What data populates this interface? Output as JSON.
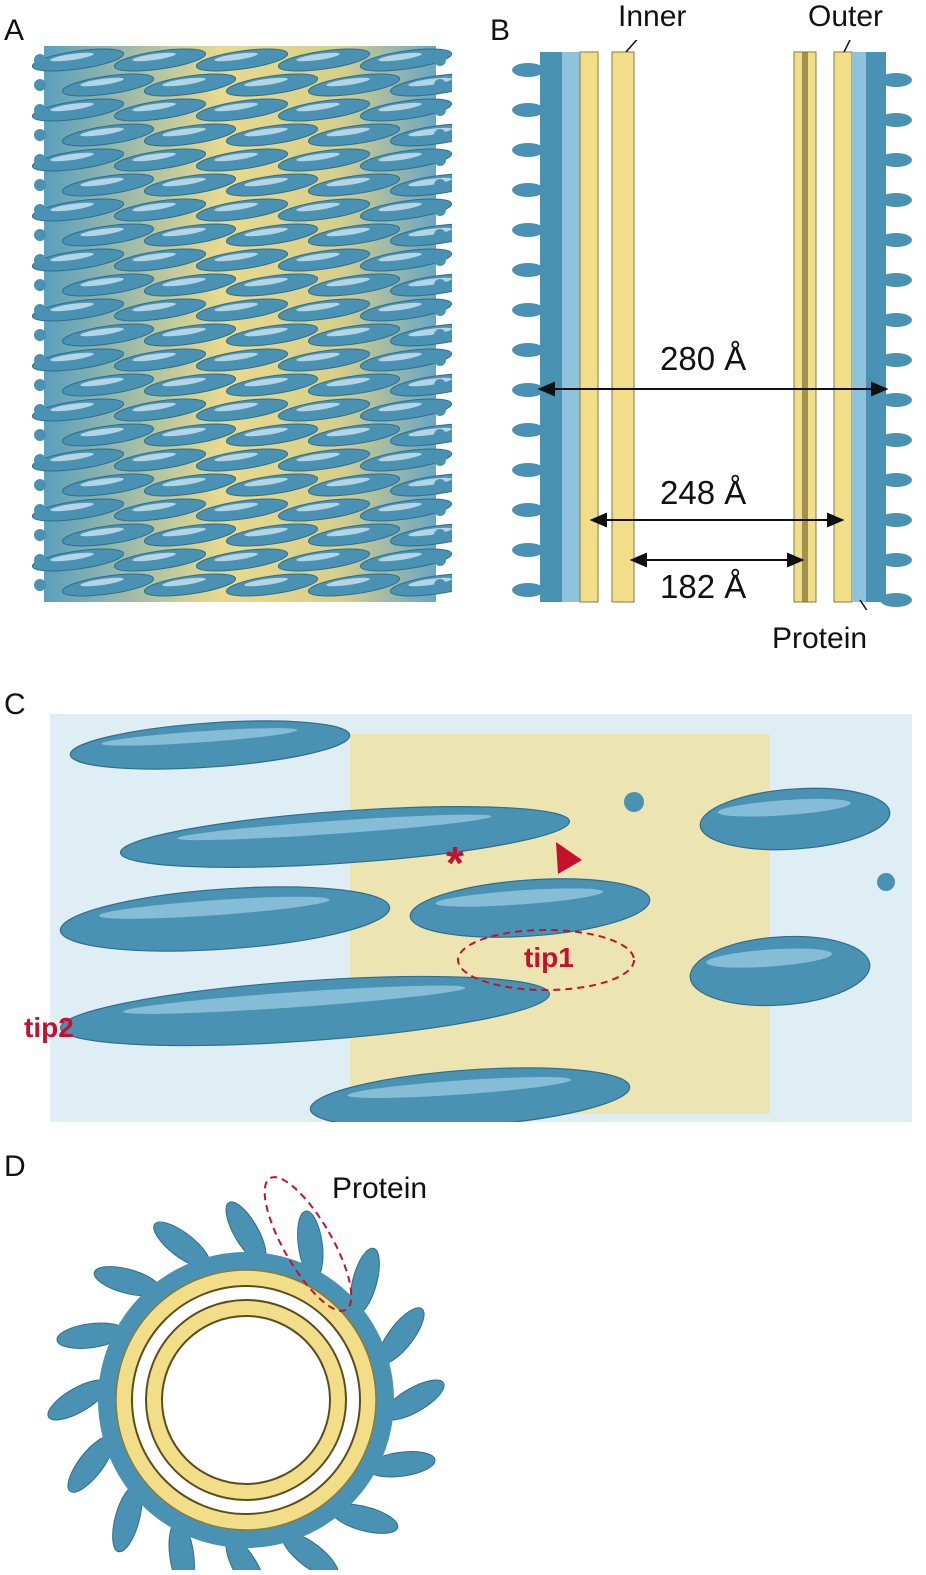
{
  "panels": {
    "a": {
      "letter": "A"
    },
    "b": {
      "letter": "B",
      "label_inner": "Inner",
      "label_outer": "Outer",
      "label_protein": "Protein",
      "dim_outer": "280 Å",
      "dim_middle": "248 Å",
      "dim_inner": "182 Å"
    },
    "c": {
      "letter": "C",
      "label_tip1": "tip1",
      "label_tip2": "tip2",
      "asterisk": "*"
    },
    "d": {
      "letter": "D",
      "label_protein": "Protein"
    }
  },
  "colors": {
    "protein_blue": "#4a92b4",
    "protein_light": "#a9d6e8",
    "membrane_yellow": "#f2de88",
    "annotation_red": "#c8102e"
  }
}
